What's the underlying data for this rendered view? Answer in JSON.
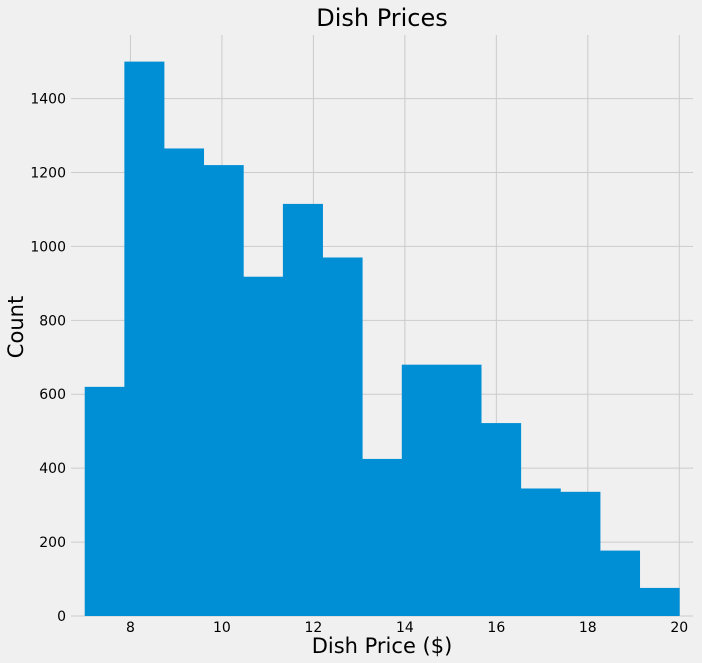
{
  "chart_data": {
    "type": "bar",
    "title": "Dish Prices",
    "xlabel": "Dish Price ($)",
    "ylabel": "Count",
    "bin_edges": [
      7.0,
      7.867,
      8.733,
      9.6,
      10.467,
      11.333,
      12.2,
      13.067,
      13.933,
      14.8,
      15.667,
      16.533,
      17.4,
      18.267,
      19.133,
      20.0
    ],
    "values": [
      620,
      1500,
      1265,
      1220,
      918,
      1115,
      970,
      425,
      680,
      680,
      522,
      345,
      336,
      177,
      76
    ],
    "xlim": [
      6.7,
      20.3
    ],
    "ylim": [
      0,
      1572
    ],
    "xticks": [
      "8",
      "10",
      "12",
      "14",
      "16",
      "18",
      "20"
    ],
    "yticks": [
      "0",
      "200",
      "400",
      "600",
      "800",
      "1000",
      "1200",
      "1400"
    ],
    "grid": true,
    "colors": {
      "bar": "#008fd5",
      "background": "#f0f0f0",
      "grid": "#cbcbcb"
    }
  }
}
